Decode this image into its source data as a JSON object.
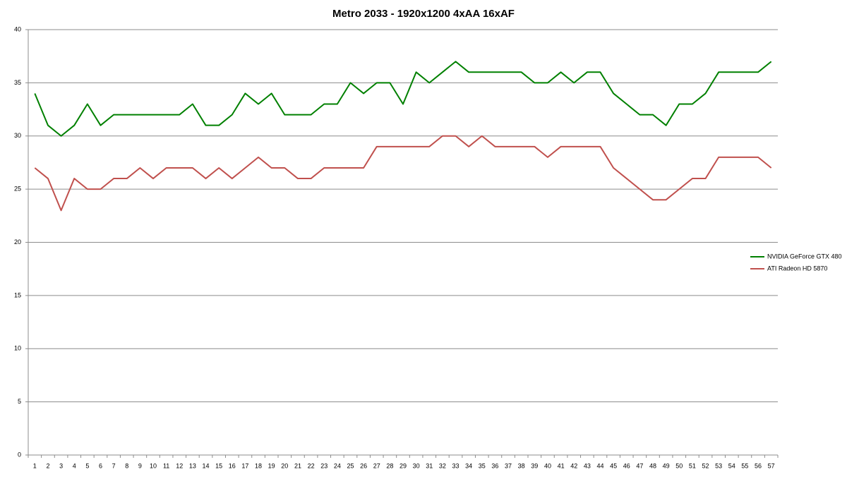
{
  "chart_data": {
    "type": "line",
    "title": "Metro 2033 - 1920x1200 4xAA 16xAF",
    "categories": [
      1,
      2,
      3,
      4,
      5,
      6,
      7,
      8,
      9,
      10,
      11,
      12,
      13,
      14,
      15,
      16,
      17,
      18,
      19,
      20,
      21,
      22,
      23,
      24,
      25,
      26,
      27,
      28,
      29,
      30,
      31,
      32,
      33,
      34,
      35,
      36,
      37,
      38,
      39,
      40,
      41,
      42,
      43,
      44,
      45,
      46,
      47,
      48,
      49,
      50,
      51,
      52,
      53,
      54,
      55,
      56,
      57
    ],
    "series": [
      {
        "name": "NVIDIA GeForce GTX 480",
        "color": "#008000",
        "values": [
          34,
          31,
          30,
          31,
          33,
          31,
          32,
          32,
          32,
          32,
          32,
          32,
          33,
          31,
          31,
          32,
          34,
          33,
          34,
          32,
          32,
          32,
          33,
          33,
          35,
          34,
          35,
          35,
          33,
          36,
          35,
          36,
          37,
          36,
          36,
          36,
          36,
          36,
          35,
          35,
          36,
          35,
          36,
          36,
          34,
          33,
          32,
          32,
          31,
          33,
          33,
          34,
          36,
          36,
          36,
          36,
          37
        ]
      },
      {
        "name": "ATI Radeon HD 5870",
        "color": "#c0504d",
        "values": [
          27,
          26,
          23,
          26,
          25,
          25,
          26,
          26,
          27,
          26,
          27,
          27,
          27,
          26,
          27,
          26,
          27,
          28,
          27,
          27,
          26,
          26,
          27,
          27,
          27,
          27,
          29,
          29,
          29,
          29,
          29,
          30,
          30,
          29,
          30,
          29,
          29,
          29,
          29,
          28,
          29,
          29,
          29,
          29,
          27,
          26,
          25,
          24,
          24,
          25,
          26,
          26,
          28,
          28,
          28,
          28,
          27
        ]
      }
    ],
    "ylim": [
      0,
      40
    ],
    "yticks": [
      0,
      5,
      10,
      15,
      20,
      25,
      30,
      35,
      40
    ],
    "grid": true,
    "legend": "right"
  }
}
